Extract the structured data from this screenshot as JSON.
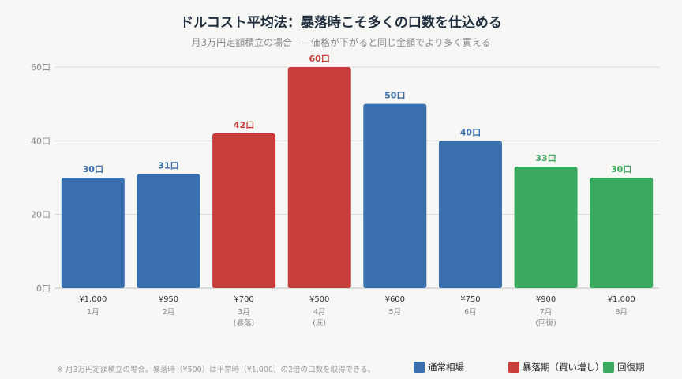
{
  "title": "ドルコスト平均法：暴落時こそ多くの口数を仕込める",
  "subtitle": "月3万円定額積立の場合——価格が下がると同じ金額でより多く買える",
  "footnote": "※ 月3万円定額積立の場合。暴落時（¥500）は平常時（¥1,000）の2倍の口数を取得できる。",
  "colors": {
    "normal": "#3a6fad",
    "crash": "#c83c3c",
    "recovery": "#3aab5e"
  },
  "legend": [
    {
      "label": "通常相場",
      "color": "#3a6fad"
    },
    {
      "label": "暴落期（買い増し）",
      "color": "#c83c3c"
    },
    {
      "label": "回復期",
      "color": "#3aab5e"
    }
  ],
  "chart_data": {
    "type": "bar",
    "categories": [
      "1月",
      "2月",
      "3月",
      "4月",
      "5月",
      "6月",
      "7月",
      "8月"
    ],
    "category_notes": [
      "",
      "",
      "(暴落)",
      "(底)",
      "",
      "",
      "(回復)",
      ""
    ],
    "prices": [
      "¥1,000",
      "¥950",
      "¥700",
      "¥500",
      "¥600",
      "¥750",
      "¥900",
      "¥1,000"
    ],
    "values": [
      30,
      31,
      42,
      60,
      50,
      40,
      33,
      30
    ],
    "data_labels": [
      "30口",
      "31口",
      "42口",
      "60口",
      "50口",
      "40口",
      "33口",
      "30口"
    ],
    "bar_groups": [
      "normal",
      "normal",
      "crash",
      "crash",
      "normal",
      "normal",
      "recovery",
      "recovery"
    ],
    "yticks": [
      0,
      20,
      40,
      60
    ],
    "ytick_labels": [
      "0口",
      "20口",
      "40口",
      "60口"
    ],
    "ylim": [
      0,
      60
    ],
    "grid": true,
    "legend_position": "bottom-right"
  }
}
